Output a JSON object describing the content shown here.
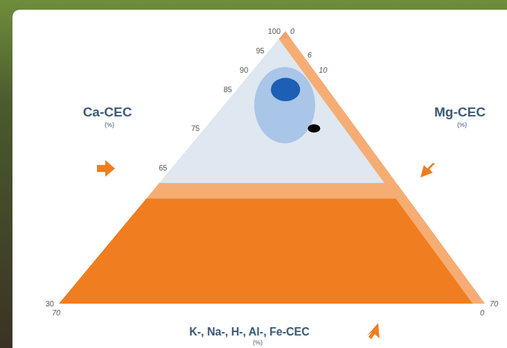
{
  "chart_data": {
    "type": "ternary",
    "axes": {
      "left": {
        "label": "Ca-CEC",
        "unit": "(%)",
        "lim": [
          30,
          100
        ],
        "ticks": [
          100,
          95,
          90,
          85,
          75,
          65,
          30
        ]
      },
      "right": {
        "label": "Mg-CEC",
        "unit": "(%)",
        "lim": [
          0,
          70
        ],
        "ticks": [
          0,
          6,
          10,
          70
        ]
      },
      "bottom": {
        "label": "K-, Na-, H-, Al-, Fe-CEC",
        "unit": "(%)",
        "lim": [
          0,
          70
        ],
        "ticks": [
          70,
          0
        ]
      }
    },
    "regions": [
      {
        "ca_max": 61,
        "color": "#f5ad74"
      },
      {
        "ca_max": 57,
        "color": "#f07d1f"
      },
      {
        "other_max": 2,
        "color": "#f5ad74"
      },
      {
        "ca_min": 98,
        "color": "#f3a26a"
      }
    ],
    "zones": [
      {
        "ca": 81,
        "mg": 10,
        "ca_spread": 9.8,
        "mg_spread": 5,
        "color": "#a9c5e8"
      },
      {
        "ca": 85,
        "mg": 8,
        "ca_spread": 3,
        "mg_spread": 2.4,
        "color": "#1c5fb4"
      }
    ],
    "points": [
      {
        "ca": 75,
        "mg": 18,
        "color": "#000000"
      }
    ]
  }
}
